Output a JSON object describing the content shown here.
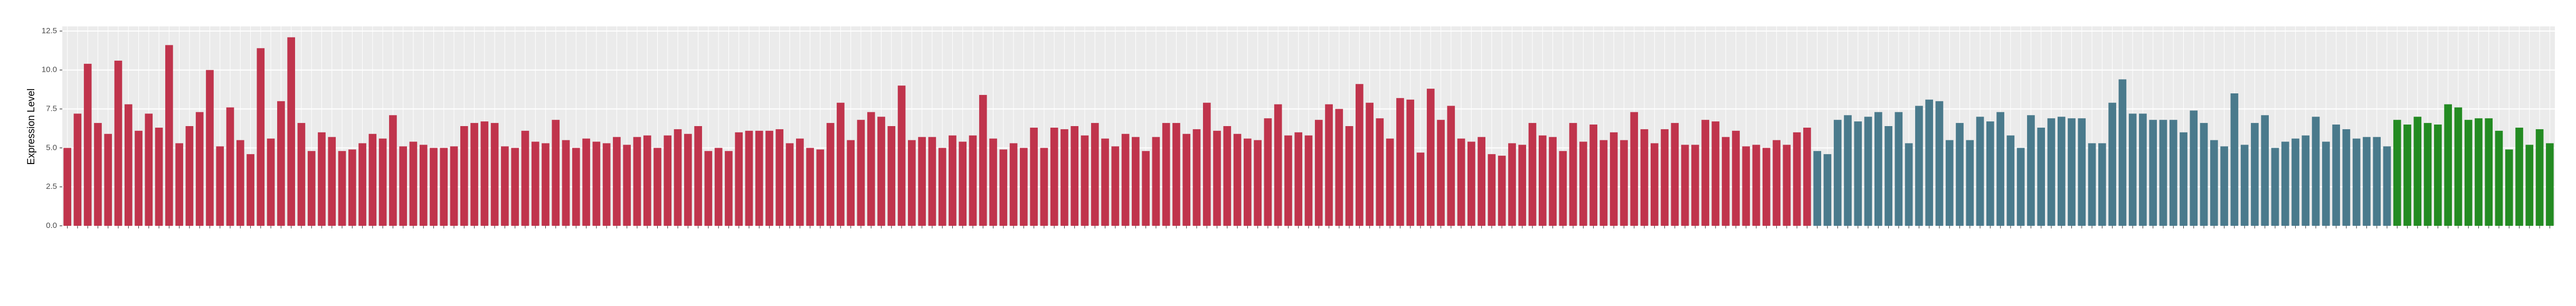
{
  "chart_data": {
    "type": "bar",
    "y_label": "Expression Level",
    "categories": [
      null,
      null,
      null,
      null,
      null,
      null,
      null,
      null,
      null,
      null,
      null,
      null,
      null,
      null,
      null,
      null,
      null,
      null,
      null,
      null,
      null,
      null,
      null,
      null,
      null,
      null,
      null,
      null,
      null,
      null,
      null,
      null,
      null,
      null,
      null,
      null,
      null,
      null,
      null,
      null,
      null,
      null,
      null,
      null,
      null,
      null,
      null,
      null,
      null,
      null,
      null,
      null,
      null,
      null,
      null,
      null,
      null,
      null,
      null,
      null,
      null,
      null,
      null,
      null,
      null,
      null,
      null,
      null,
      null,
      null,
      null,
      null,
      null,
      null,
      null,
      null,
      null,
      null,
      null,
      null,
      null,
      null,
      null,
      null,
      null,
      null,
      null,
      null,
      null,
      null,
      null,
      null,
      null,
      null,
      null,
      null,
      null,
      null,
      null,
      null,
      null,
      null,
      null,
      null,
      null,
      null,
      null,
      null,
      null,
      null,
      null,
      null,
      null,
      null,
      null,
      null,
      null,
      null,
      null,
      null,
      null,
      null,
      null,
      null,
      null,
      null,
      null,
      null,
      null,
      null,
      null,
      null,
      null,
      null,
      null,
      null,
      null,
      null,
      null,
      null,
      null,
      null,
      null,
      null,
      null,
      null,
      null,
      null,
      null,
      null,
      null,
      null,
      null,
      null,
      null,
      null,
      null,
      null,
      null,
      null,
      null,
      null,
      null,
      null,
      null,
      null,
      null,
      null,
      null,
      null,
      null,
      null,
      null,
      null,
      null,
      null,
      null,
      null,
      null,
      null,
      null,
      null,
      null,
      null,
      null,
      null,
      null,
      null,
      null,
      null,
      null,
      null,
      null,
      null,
      null,
      null,
      null,
      null,
      null,
      null,
      null,
      null,
      null,
      null,
      null,
      null,
      null,
      null,
      null,
      null,
      null,
      null,
      null,
      null,
      null,
      null,
      null,
      null,
      null,
      null,
      null,
      null,
      null,
      null,
      null,
      null,
      null,
      null,
      null,
      null,
      null,
      null,
      null,
      null,
      null,
      null,
      null,
      null,
      null,
      null,
      null,
      null,
      null,
      null,
      null
    ],
    "values": [
      5.0,
      7.2,
      10.4,
      6.6,
      5.9,
      10.6,
      7.8,
      6.1,
      7.2,
      6.3,
      11.6,
      5.3,
      6.4,
      7.3,
      10.0,
      5.1,
      7.6,
      5.5,
      4.6,
      11.4,
      5.6,
      8.0,
      12.1,
      6.6,
      4.8,
      6.0,
      5.7,
      4.8,
      4.9,
      5.3,
      5.9,
      5.6,
      7.1,
      5.1,
      5.4,
      5.2,
      5.0,
      5.0,
      5.1,
      6.4,
      6.6,
      6.7,
      6.6,
      5.1,
      5.0,
      6.1,
      5.4,
      5.3,
      6.8,
      5.5,
      5.0,
      5.6,
      5.4,
      5.3,
      5.7,
      5.2,
      5.7,
      5.8,
      5.0,
      5.8,
      6.2,
      5.9,
      6.4,
      4.8,
      5.0,
      4.8,
      6.0,
      6.1,
      6.1,
      6.1,
      6.2,
      5.3,
      5.6,
      5.0,
      4.9,
      6.6,
      7.9,
      5.5,
      6.8,
      7.3,
      7.0,
      6.4,
      9.0,
      5.5,
      5.7,
      5.7,
      5.0,
      5.8,
      5.4,
      5.8,
      8.4,
      5.6,
      4.9,
      5.3,
      5.0,
      6.3,
      5.0,
      6.3,
      6.2,
      6.4,
      5.8,
      6.6,
      5.6,
      5.1,
      5.9,
      5.7,
      4.8,
      5.7,
      6.6,
      6.6,
      5.9,
      6.2,
      7.9,
      6.1,
      6.4,
      5.9,
      5.6,
      5.5,
      6.9,
      7.8,
      5.8,
      6.0,
      5.8,
      6.8,
      7.8,
      7.5,
      6.4,
      9.1,
      7.9,
      6.9,
      5.6,
      8.2,
      8.1,
      4.7,
      8.8,
      6.8,
      7.7,
      5.6,
      5.4,
      5.7,
      4.6,
      4.5,
      5.3,
      5.2,
      6.6,
      5.8,
      5.7,
      4.8,
      6.6,
      5.4,
      6.5,
      5.5,
      6.0,
      5.5,
      7.3,
      6.2,
      5.3,
      6.2,
      6.6,
      5.2,
      5.2,
      6.8,
      6.7,
      5.7,
      6.1,
      5.1,
      5.2,
      5.0,
      5.5,
      5.2,
      6.0,
      6.3,
      4.8,
      4.6,
      6.8,
      7.1,
      6.7,
      7.0,
      7.3,
      6.4,
      7.3,
      5.3,
      7.7,
      8.1,
      8.0,
      5.5,
      6.6,
      5.5,
      7.0,
      6.7,
      7.3,
      5.8,
      5.0,
      7.1,
      6.3,
      6.9,
      7.0,
      6.9,
      6.9,
      5.3,
      5.3,
      7.9,
      9.4,
      7.2,
      7.2,
      6.8,
      6.8,
      6.8,
      6.0,
      7.4,
      6.6,
      5.5,
      5.1,
      8.5,
      5.2,
      6.6,
      7.1,
      5.0,
      5.4,
      5.6,
      5.8,
      7.0,
      5.4,
      6.5,
      6.2,
      5.6,
      5.7,
      5.7,
      5.1,
      6.8,
      6.5,
      7.0,
      6.6,
      6.5,
      7.8,
      7.6,
      6.8,
      6.9,
      6.9,
      6.1,
      4.9,
      6.3,
      5.2,
      6.2,
      5.3
    ],
    "colors": [
      "#c0344c",
      "#c0344c",
      "#c0344c",
      "#c0344c",
      "#c0344c",
      "#c0344c",
      "#c0344c",
      "#c0344c",
      "#c0344c",
      "#c0344c",
      "#c0344c",
      "#c0344c",
      "#c0344c",
      "#c0344c",
      "#c0344c",
      "#c0344c",
      "#c0344c",
      "#c0344c",
      "#c0344c",
      "#c0344c",
      "#c0344c",
      "#c0344c",
      "#c0344c",
      "#c0344c",
      "#c0344c",
      "#c0344c",
      "#c0344c",
      "#c0344c",
      "#c0344c",
      "#c0344c",
      "#c0344c",
      "#c0344c",
      "#c0344c",
      "#c0344c",
      "#c0344c",
      "#c0344c",
      "#c0344c",
      "#c0344c",
      "#c0344c",
      "#c0344c",
      "#c0344c",
      "#c0344c",
      "#c0344c",
      "#c0344c",
      "#c0344c",
      "#c0344c",
      "#c0344c",
      "#c0344c",
      "#c0344c",
      "#c0344c",
      "#c0344c",
      "#c0344c",
      "#c0344c",
      "#c0344c",
      "#c0344c",
      "#c0344c",
      "#c0344c",
      "#c0344c",
      "#c0344c",
      "#c0344c",
      "#c0344c",
      "#c0344c",
      "#c0344c",
      "#c0344c",
      "#c0344c",
      "#c0344c",
      "#c0344c",
      "#c0344c",
      "#c0344c",
      "#c0344c",
      "#c0344c",
      "#c0344c",
      "#c0344c",
      "#c0344c",
      "#c0344c",
      "#c0344c",
      "#c0344c",
      "#c0344c",
      "#c0344c",
      "#c0344c",
      "#c0344c",
      "#c0344c",
      "#c0344c",
      "#c0344c",
      "#c0344c",
      "#c0344c",
      "#c0344c",
      "#c0344c",
      "#c0344c",
      "#c0344c",
      "#c0344c",
      "#c0344c",
      "#c0344c",
      "#c0344c",
      "#c0344c",
      "#c0344c",
      "#c0344c",
      "#c0344c",
      "#c0344c",
      "#c0344c",
      "#c0344c",
      "#c0344c",
      "#c0344c",
      "#c0344c",
      "#c0344c",
      "#c0344c",
      "#c0344c",
      "#c0344c",
      "#c0344c",
      "#c0344c",
      "#c0344c",
      "#c0344c",
      "#c0344c",
      "#c0344c",
      "#c0344c",
      "#c0344c",
      "#c0344c",
      "#c0344c",
      "#c0344c",
      "#c0344c",
      "#c0344c",
      "#c0344c",
      "#c0344c",
      "#c0344c",
      "#c0344c",
      "#c0344c",
      "#c0344c",
      "#c0344c",
      "#c0344c",
      "#c0344c",
      "#c0344c",
      "#c0344c",
      "#c0344c",
      "#c0344c",
      "#c0344c",
      "#c0344c",
      "#c0344c",
      "#c0344c",
      "#c0344c",
      "#c0344c",
      "#c0344c",
      "#c0344c",
      "#c0344c",
      "#c0344c",
      "#c0344c",
      "#c0344c",
      "#c0344c",
      "#c0344c",
      "#c0344c",
      "#c0344c",
      "#c0344c",
      "#c0344c",
      "#c0344c",
      "#c0344c",
      "#c0344c",
      "#c0344c",
      "#c0344c",
      "#c0344c",
      "#c0344c",
      "#c0344c",
      "#c0344c",
      "#c0344c",
      "#c0344c",
      "#c0344c",
      "#c0344c",
      "#c0344c",
      "#c0344c",
      "#c0344c",
      "#c0344c",
      "#c0344c",
      "#c0344c",
      "#c0344c",
      "#4a7a8c",
      "#4a7a8c",
      "#4a7a8c",
      "#4a7a8c",
      "#4a7a8c",
      "#4a7a8c",
      "#4a7a8c",
      "#4a7a8c",
      "#4a7a8c",
      "#4a7a8c",
      "#4a7a8c",
      "#4a7a8c",
      "#4a7a8c",
      "#4a7a8c",
      "#4a7a8c",
      "#4a7a8c",
      "#4a7a8c",
      "#4a7a8c",
      "#4a7a8c",
      "#4a7a8c",
      "#4a7a8c",
      "#4a7a8c",
      "#4a7a8c",
      "#4a7a8c",
      "#4a7a8c",
      "#4a7a8c",
      "#4a7a8c",
      "#4a7a8c",
      "#4a7a8c",
      "#4a7a8c",
      "#4a7a8c",
      "#4a7a8c",
      "#4a7a8c",
      "#4a7a8c",
      "#4a7a8c",
      "#4a7a8c",
      "#4a7a8c",
      "#4a7a8c",
      "#4a7a8c",
      "#4a7a8c",
      "#4a7a8c",
      "#4a7a8c",
      "#4a7a8c",
      "#4a7a8c",
      "#4a7a8c",
      "#4a7a8c",
      "#4a7a8c",
      "#4a7a8c",
      "#4a7a8c",
      "#4a7a8c",
      "#4a7a8c",
      "#4a7a8c",
      "#4a7a8c",
      "#4a7a8c",
      "#4a7a8c",
      "#4a7a8c",
      "#4a7a8c",
      "#238b22",
      "#238b22",
      "#238b22",
      "#238b22",
      "#238b22",
      "#238b22",
      "#238b22",
      "#238b22",
      "#238b22",
      "#238b22",
      "#238b22",
      "#238b22",
      "#238b22",
      "#238b22",
      "#238b22",
      "#238b22"
    ],
    "ylim": [
      0,
      12.8
    ],
    "yticks": [
      {
        "value": 0,
        "label": "0.0"
      },
      2.5,
      {
        "value": 5,
        "label": "5.0"
      },
      7.5,
      {
        "value": 10,
        "label": "10.0"
      },
      12.5
    ],
    "grid": true
  }
}
